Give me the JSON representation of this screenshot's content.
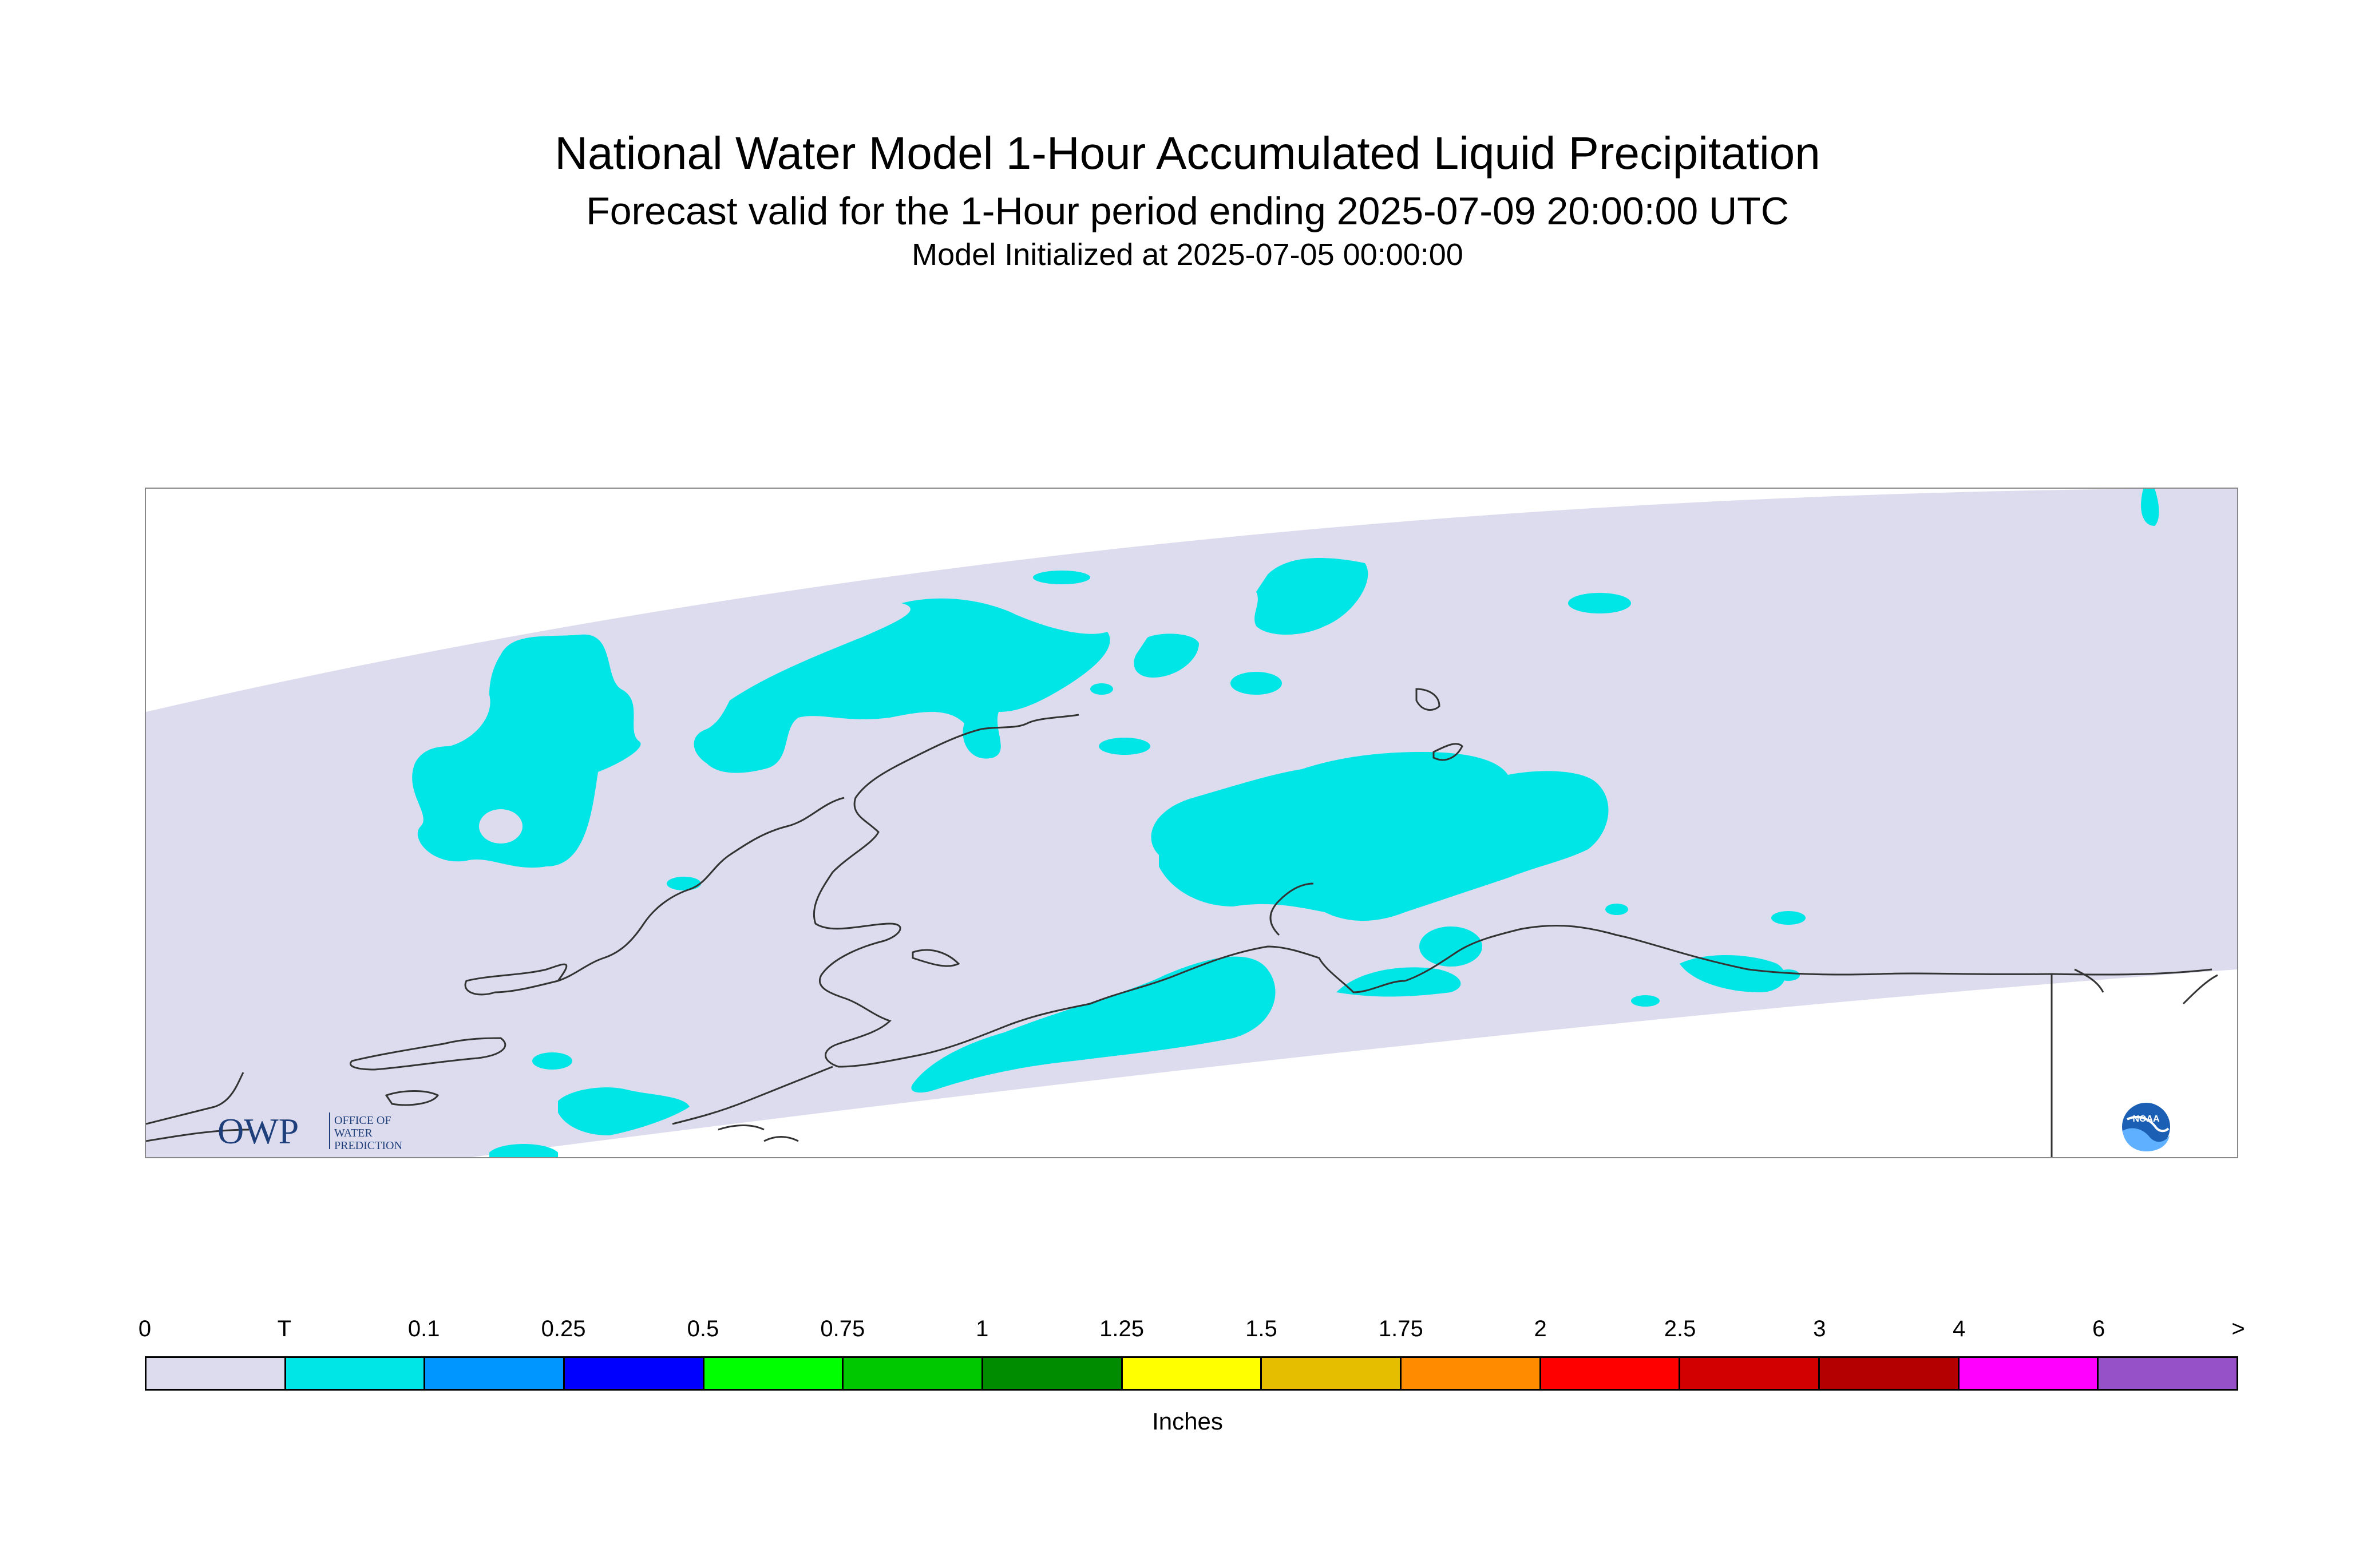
{
  "title": {
    "line1": "National Water Model 1-Hour Accumulated Liquid Precipitation",
    "line2": "Forecast valid for the 1-Hour period ending 2025-07-09 20:00:00 UTC",
    "line3": "Model Initialized at 2025-07-05 00:00:00"
  },
  "map": {
    "region": "Alaska",
    "domain_fill_color": "#dcdcee",
    "precip_fill_color": "#00e6e6",
    "coastline_color": "#333333"
  },
  "logos": {
    "owp": {
      "letters": "OWP",
      "line1": "OFFICE OF",
      "line2": "WATER",
      "line3": "PREDICTION"
    },
    "noaa": {
      "letters": "NOAA"
    }
  },
  "legend": {
    "ticks": [
      "0",
      "T",
      "0.1",
      "0.25",
      "0.5",
      "0.75",
      "1",
      "1.25",
      "1.5",
      "1.75",
      "2",
      "2.5",
      "3",
      "4",
      "6",
      ">"
    ],
    "colors": [
      "#dcdcee",
      "#00e6e6",
      "#0096ff",
      "#0000ff",
      "#00ff00",
      "#00c800",
      "#008c00",
      "#ffff00",
      "#e6be00",
      "#ff8c00",
      "#ff0000",
      "#d20000",
      "#b40000",
      "#ff00ff",
      "#9650c8"
    ],
    "units": "Inches"
  }
}
